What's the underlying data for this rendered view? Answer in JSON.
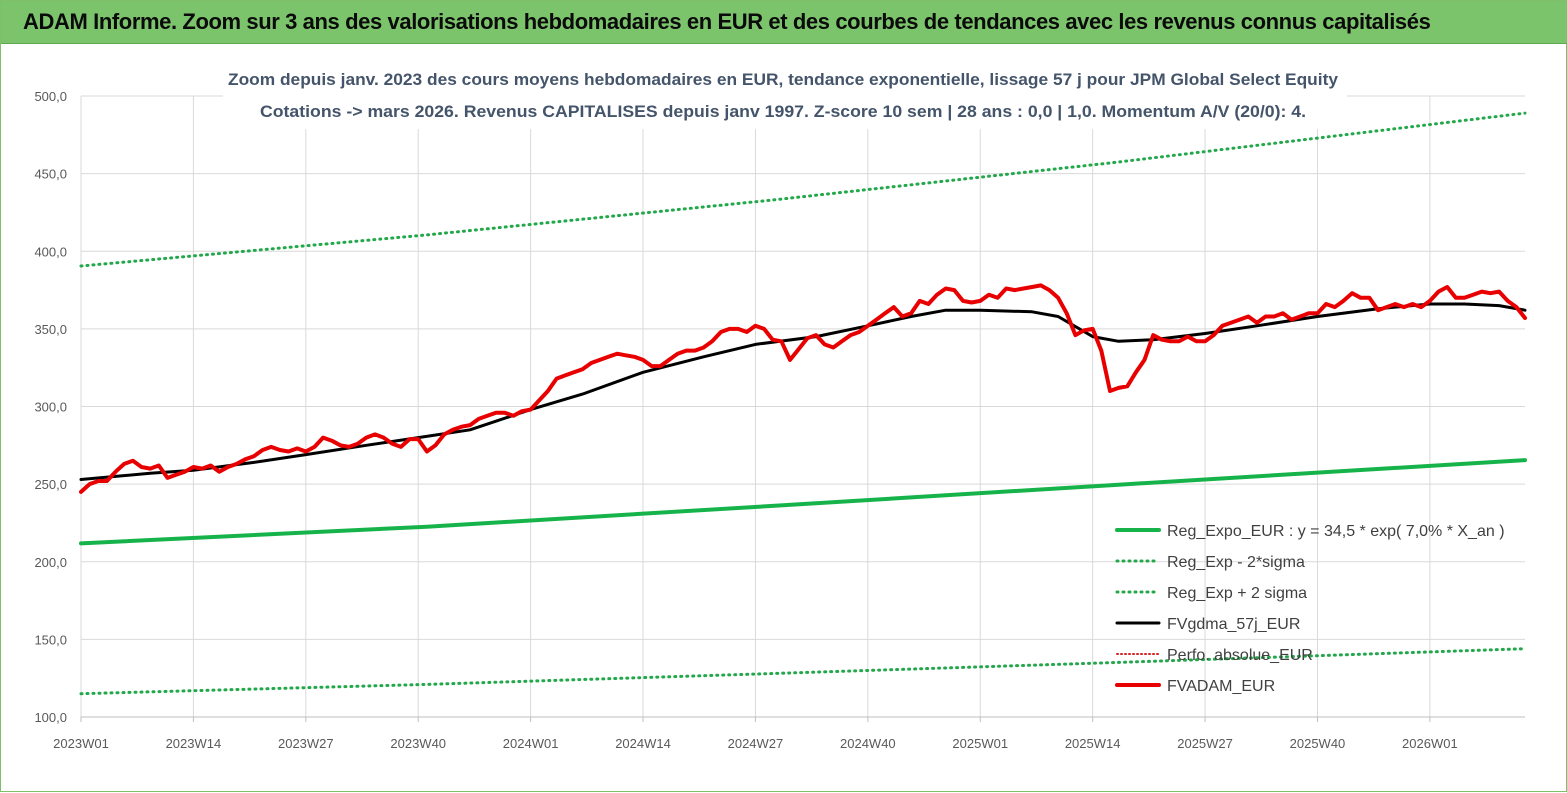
{
  "banner": {
    "title": "ADAM Informe. Zoom sur 3 ans des valorisations hebdomadaires en EUR et des courbes de tendances avec les revenus connus capitalisés"
  },
  "colors": {
    "banner_bg": "#7cc46c",
    "reg_expo": "#16b34a",
    "sigma_lines": "#22a84a",
    "fvgdma": "#000000",
    "perfo": "#d62020",
    "fvadam": "#e80000",
    "grid": "#d9d9d9",
    "subtitle": "#44546a"
  },
  "chart_data": {
    "type": "line",
    "title": "Zoom depuis janv. 2023 des cours moyens hebdomadaires en EUR, tendance exponentielle, lissage 57 j pour JPM Global Select Equity",
    "subtitle": "Cotations -> mars 2026. Revenus CAPITALISES depuis janv 1997. Z-score 10 sem | 28 ans : 0,0 | 1,0. Momentum A/V (20/0): 4.",
    "xlabel": "",
    "ylabel": "",
    "ylim": [
      100,
      500
    ],
    "y_ticks": [
      "100,0",
      "150,0",
      "200,0",
      "250,0",
      "300,0",
      "350,0",
      "400,0",
      "450,0",
      "500,0"
    ],
    "x_ticks": [
      "2023W01",
      "2023W14",
      "2023W27",
      "2023W40",
      "2024W01",
      "2024W14",
      "2024W27",
      "2024W40",
      "2025W01",
      "2025W14",
      "2025W27",
      "2025W40",
      "2026W01"
    ],
    "x_tick_index": [
      0,
      13,
      26,
      39,
      52,
      65,
      78,
      91,
      104,
      117,
      130,
      143,
      156
    ],
    "n_weeks": 168,
    "grid": true,
    "legend_position": "bottom-right",
    "series": [
      {
        "name": "Reg_Expo_EUR : y = 34,5 * exp( 7,0% *  X_an )",
        "style": "solid-thick",
        "color": "#16b34a",
        "points": [
          [
            0,
            211.8
          ],
          [
            40,
            222.6
          ],
          [
            80,
            236.0
          ],
          [
            120,
            249.6
          ],
          [
            167,
            265.5
          ]
        ]
      },
      {
        "name": "Reg_Exp - 2*sigma",
        "style": "dotted",
        "color": "#22a84a",
        "points": [
          [
            0,
            115.0
          ],
          [
            40,
            121.0
          ],
          [
            80,
            128.0
          ],
          [
            120,
            135.2
          ],
          [
            167,
            144.0
          ]
        ]
      },
      {
        "name": "Reg_Exp + 2 sigma",
        "style": "dotted",
        "color": "#22a84a",
        "points": [
          [
            0,
            390.5
          ],
          [
            40,
            410.5
          ],
          [
            80,
            433.0
          ],
          [
            120,
            457.5
          ],
          [
            167,
            489.0
          ]
        ]
      },
      {
        "name": "FVgdma_57j_EUR",
        "style": "solid",
        "color": "#000000",
        "points": [
          [
            0,
            253
          ],
          [
            8,
            257
          ],
          [
            13,
            259
          ],
          [
            20,
            264
          ],
          [
            26,
            269
          ],
          [
            33,
            275
          ],
          [
            39,
            280
          ],
          [
            45,
            285
          ],
          [
            52,
            298
          ],
          [
            58,
            308
          ],
          [
            65,
            322
          ],
          [
            72,
            332
          ],
          [
            78,
            340
          ],
          [
            85,
            345
          ],
          [
            91,
            352
          ],
          [
            96,
            358
          ],
          [
            100,
            362
          ],
          [
            104,
            362
          ],
          [
            110,
            361
          ],
          [
            113,
            358
          ],
          [
            117,
            345
          ],
          [
            120,
            342
          ],
          [
            124,
            343
          ],
          [
            130,
            347
          ],
          [
            136,
            352
          ],
          [
            143,
            358
          ],
          [
            150,
            363
          ],
          [
            156,
            366
          ],
          [
            160,
            366
          ],
          [
            164,
            365
          ],
          [
            167,
            362
          ]
        ]
      },
      {
        "name": "Perfo. absolue_EUR",
        "style": "dotted-thin",
        "color": "#d62020",
        "points": []
      },
      {
        "name": "FVADAM_EUR",
        "style": "solid-thick",
        "color": "#e80000",
        "points": [
          [
            0,
            245
          ],
          [
            1,
            250
          ],
          [
            2,
            252
          ],
          [
            3,
            252
          ],
          [
            4,
            258
          ],
          [
            5,
            263
          ],
          [
            6,
            265
          ],
          [
            7,
            261
          ],
          [
            8,
            260
          ],
          [
            9,
            262
          ],
          [
            10,
            254
          ],
          [
            11,
            256
          ],
          [
            12,
            258
          ],
          [
            13,
            261
          ],
          [
            14,
            260
          ],
          [
            15,
            262
          ],
          [
            16,
            258
          ],
          [
            17,
            261
          ],
          [
            18,
            263
          ],
          [
            19,
            266
          ],
          [
            20,
            268
          ],
          [
            21,
            272
          ],
          [
            22,
            274
          ],
          [
            23,
            272
          ],
          [
            24,
            271
          ],
          [
            25,
            273
          ],
          [
            26,
            271
          ],
          [
            27,
            274
          ],
          [
            28,
            280
          ],
          [
            29,
            278
          ],
          [
            30,
            275
          ],
          [
            31,
            274
          ],
          [
            32,
            276
          ],
          [
            33,
            280
          ],
          [
            34,
            282
          ],
          [
            35,
            280
          ],
          [
            36,
            276
          ],
          [
            37,
            274
          ],
          [
            38,
            279
          ],
          [
            39,
            279
          ],
          [
            40,
            271
          ],
          [
            41,
            275
          ],
          [
            42,
            282
          ],
          [
            43,
            285
          ],
          [
            44,
            287
          ],
          [
            45,
            288
          ],
          [
            46,
            292
          ],
          [
            47,
            294
          ],
          [
            48,
            296
          ],
          [
            49,
            296
          ],
          [
            50,
            294
          ],
          [
            51,
            297
          ],
          [
            52,
            298
          ],
          [
            53,
            304
          ],
          [
            54,
            310
          ],
          [
            55,
            318
          ],
          [
            56,
            320
          ],
          [
            57,
            322
          ],
          [
            58,
            324
          ],
          [
            59,
            328
          ],
          [
            60,
            330
          ],
          [
            61,
            332
          ],
          [
            62,
            334
          ],
          [
            63,
            333
          ],
          [
            64,
            332
          ],
          [
            65,
            330
          ],
          [
            66,
            326
          ],
          [
            67,
            326
          ],
          [
            68,
            330
          ],
          [
            69,
            334
          ],
          [
            70,
            336
          ],
          [
            71,
            336
          ],
          [
            72,
            338
          ],
          [
            73,
            342
          ],
          [
            74,
            348
          ],
          [
            75,
            350
          ],
          [
            76,
            350
          ],
          [
            77,
            348
          ],
          [
            78,
            352
          ],
          [
            79,
            350
          ],
          [
            80,
            343
          ],
          [
            81,
            342
          ],
          [
            82,
            330
          ],
          [
            83,
            337
          ],
          [
            84,
            344
          ],
          [
            85,
            346
          ],
          [
            86,
            340
          ],
          [
            87,
            338
          ],
          [
            88,
            342
          ],
          [
            89,
            346
          ],
          [
            90,
            348
          ],
          [
            91,
            352
          ],
          [
            92,
            356
          ],
          [
            93,
            360
          ],
          [
            94,
            364
          ],
          [
            95,
            358
          ],
          [
            96,
            360
          ],
          [
            97,
            368
          ],
          [
            98,
            366
          ],
          [
            99,
            372
          ],
          [
            100,
            376
          ],
          [
            101,
            375
          ],
          [
            102,
            368
          ],
          [
            103,
            367
          ],
          [
            104,
            368
          ],
          [
            105,
            372
          ],
          [
            106,
            370
          ],
          [
            107,
            376
          ],
          [
            108,
            375
          ],
          [
            109,
            376
          ],
          [
            110,
            377
          ],
          [
            111,
            378
          ],
          [
            112,
            375
          ],
          [
            113,
            370
          ],
          [
            114,
            360
          ],
          [
            115,
            346
          ],
          [
            116,
            349
          ],
          [
            117,
            350
          ],
          [
            118,
            336
          ],
          [
            119,
            310
          ],
          [
            120,
            312
          ],
          [
            121,
            313
          ],
          [
            122,
            322
          ],
          [
            123,
            330
          ],
          [
            124,
            346
          ],
          [
            125,
            343
          ],
          [
            126,
            342
          ],
          [
            127,
            342
          ],
          [
            128,
            345
          ],
          [
            129,
            342
          ],
          [
            130,
            342
          ],
          [
            131,
            346
          ],
          [
            132,
            352
          ],
          [
            133,
            354
          ],
          [
            134,
            356
          ],
          [
            135,
            358
          ],
          [
            136,
            354
          ],
          [
            137,
            358
          ],
          [
            138,
            358
          ],
          [
            139,
            360
          ],
          [
            140,
            356
          ],
          [
            141,
            358
          ],
          [
            142,
            360
          ],
          [
            143,
            360
          ],
          [
            144,
            366
          ],
          [
            145,
            364
          ],
          [
            146,
            368
          ],
          [
            147,
            373
          ],
          [
            148,
            370
          ],
          [
            149,
            370
          ],
          [
            150,
            362
          ],
          [
            151,
            364
          ],
          [
            152,
            366
          ],
          [
            153,
            364
          ],
          [
            154,
            366
          ],
          [
            155,
            364
          ],
          [
            156,
            368
          ],
          [
            157,
            374
          ],
          [
            158,
            377
          ],
          [
            159,
            370
          ],
          [
            160,
            370
          ],
          [
            161,
            372
          ],
          [
            162,
            374
          ],
          [
            163,
            373
          ],
          [
            164,
            374
          ],
          [
            165,
            368
          ],
          [
            166,
            364
          ],
          [
            167,
            357
          ]
        ]
      }
    ]
  }
}
